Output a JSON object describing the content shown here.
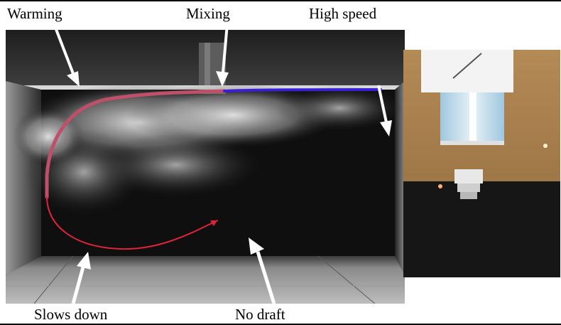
{
  "labels": {
    "warming": "Warming",
    "mixing": "Mixing",
    "high_speed": "High speed",
    "slows_down": "Slows down",
    "no_draft": "No draft"
  },
  "colors": {
    "flow_path_warm": "#c0506a",
    "flow_path_high_speed": "#3a1fd8",
    "flow_path_slow": "#e0223a",
    "arrow": "#ffffff"
  }
}
